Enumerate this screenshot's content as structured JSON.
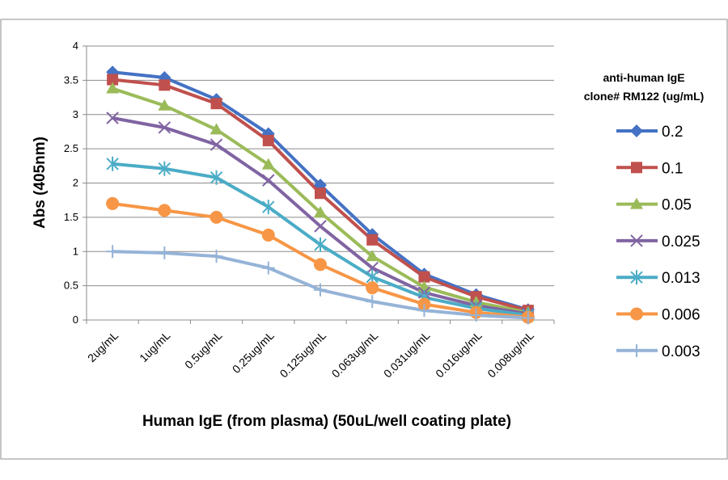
{
  "chart_data": {
    "type": "line",
    "title": "",
    "xlabel": "Human IgE (from plasma) (50uL/well coating plate)",
    "ylabel": "Abs (405nm)",
    "ylim": [
      0,
      4
    ],
    "yticks": [
      0,
      0.5,
      1,
      1.5,
      2,
      2.5,
      3,
      3.5,
      4
    ],
    "ytick_labels": [
      "0",
      "0.5",
      "1",
      "1.5",
      "2",
      "2.5",
      "3",
      "3.5",
      "4"
    ],
    "grid": true,
    "categories": [
      "2ug/mL",
      "1ug/mL",
      "0.5ug/mL",
      "0.25ug/mL",
      "0.125ug/mL",
      "0.063ug/mL",
      "0.031ug/mL",
      "0.016ug/mL",
      "0.008ug/mL"
    ],
    "legend_title": [
      "anti-human IgE",
      "clone# RM122 (ug/mL)"
    ],
    "legend_position": "right",
    "series": [
      {
        "name": "0.2",
        "color": "#4472C4",
        "marker": "diamond",
        "values": [
          3.62,
          3.54,
          3.22,
          2.72,
          1.97,
          1.25,
          0.67,
          0.37,
          0.15
        ]
      },
      {
        "name": "0.1",
        "color": "#C0504D",
        "marker": "square",
        "values": [
          3.51,
          3.43,
          3.16,
          2.62,
          1.85,
          1.17,
          0.63,
          0.34,
          0.14
        ]
      },
      {
        "name": "0.05",
        "color": "#9BBB59",
        "marker": "triangle",
        "values": [
          3.38,
          3.13,
          2.78,
          2.27,
          1.57,
          0.93,
          0.48,
          0.26,
          0.11
        ]
      },
      {
        "name": "0.025",
        "color": "#8064A2",
        "marker": "x",
        "values": [
          2.95,
          2.81,
          2.56,
          2.04,
          1.37,
          0.76,
          0.4,
          0.21,
          0.09
        ]
      },
      {
        "name": "0.013",
        "color": "#4BACC6",
        "marker": "star",
        "values": [
          2.28,
          2.21,
          2.08,
          1.65,
          1.1,
          0.63,
          0.33,
          0.17,
          0.07
        ]
      },
      {
        "name": "0.006",
        "color": "#F79646",
        "marker": "circle",
        "values": [
          1.7,
          1.6,
          1.5,
          1.24,
          0.81,
          0.47,
          0.23,
          0.11,
          0.04
        ]
      },
      {
        "name": "0.003",
        "color": "#95B3D7",
        "marker": "plus",
        "values": [
          1.0,
          0.98,
          0.93,
          0.76,
          0.44,
          0.27,
          0.14,
          0.07,
          0.03
        ]
      }
    ]
  }
}
